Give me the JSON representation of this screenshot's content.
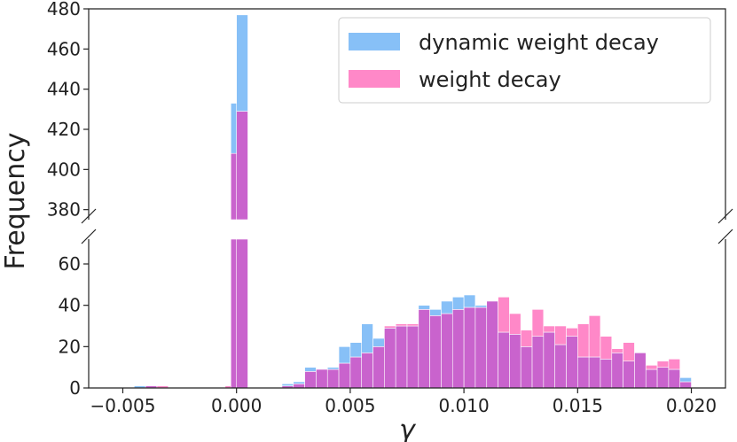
{
  "chart_data": {
    "type": "bar",
    "subtype": "histogram-overlay-broken-y-axis",
    "xlabel": "γ",
    "ylabel": "Frequency",
    "xlim": [
      -0.0065,
      0.0215
    ],
    "x_ticks": [
      -0.005,
      0.0,
      0.005,
      0.01,
      0.015,
      0.02
    ],
    "x_tick_labels": [
      "−0.005",
      "0.000",
      "0.005",
      "0.010",
      "0.015",
      "0.020"
    ],
    "y_upper_range": [
      375,
      480
    ],
    "y_upper_ticks": [
      380,
      400,
      420,
      440,
      460,
      480
    ],
    "y_lower_range": [
      0,
      72
    ],
    "y_lower_ticks": [
      0,
      20,
      40,
      60
    ],
    "bin_width": 0.0005,
    "bin_starts": [
      -0.0045,
      -0.004,
      -0.0035,
      -0.0005,
      -0.00025,
      0.0,
      0.002,
      0.0025,
      0.003,
      0.0035,
      0.004,
      0.0045,
      0.005,
      0.0055,
      0.006,
      0.0065,
      0.007,
      0.0075,
      0.008,
      0.0085,
      0.009,
      0.0095,
      0.01,
      0.0105,
      0.011,
      0.0115,
      0.012,
      0.0125,
      0.013,
      0.0135,
      0.014,
      0.0145,
      0.015,
      0.0155,
      0.016,
      0.0165,
      0.017,
      0.0175,
      0.018,
      0.0185,
      0.019,
      0.0195
    ],
    "series": [
      {
        "name": "dynamic weight decay",
        "color": "#87c0f7",
        "values": [
          1,
          1,
          0,
          0,
          433,
          477,
          2,
          3,
          10,
          9,
          10,
          20,
          22,
          31,
          24,
          29,
          30,
          30,
          40,
          38,
          42,
          44,
          45,
          40,
          42,
          27,
          26,
          20,
          25,
          27,
          21,
          25,
          15,
          15,
          14,
          17,
          13,
          17,
          9,
          10,
          9,
          5
        ]
      },
      {
        "name": "weight decay",
        "color": "#ff88c8",
        "values": [
          0,
          1,
          1,
          1,
          408,
          429,
          1,
          2,
          8,
          9,
          9,
          12,
          15,
          17,
          20,
          30,
          31,
          31,
          38,
          35,
          36,
          38,
          39,
          39,
          42,
          44,
          36,
          28,
          38,
          30,
          30,
          29,
          31,
          35,
          25,
          19,
          22,
          17,
          11,
          13,
          14,
          3
        ]
      }
    ],
    "overlap_color": "#c963cd",
    "legend_position": "top-right",
    "grid": false
  }
}
